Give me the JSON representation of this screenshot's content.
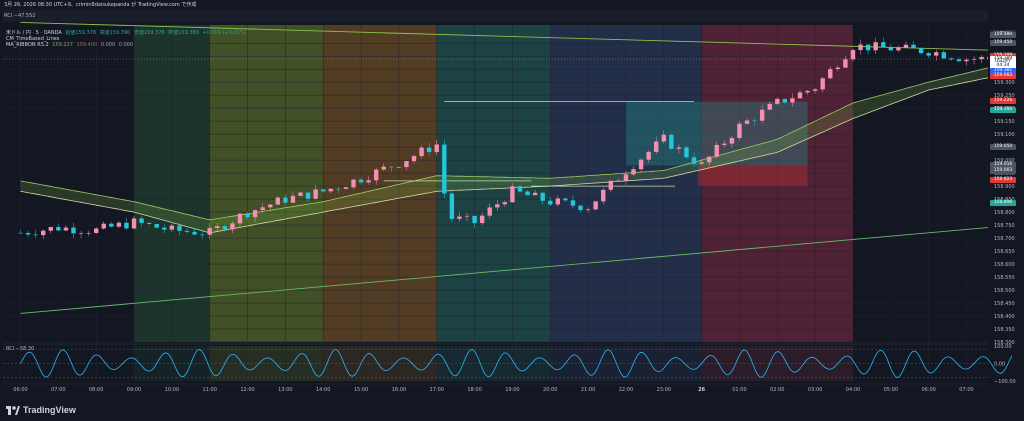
{
  "header": {
    "timestamp": "3月 26, 2026 08:30 UTC+9、crimin8daisukepanda が TradingView.com で作成",
    "rci_top": "RCI  −47.552"
  },
  "legend": {
    "symbol_line": "米ドル / 円 · 5 · OANDA",
    "ohlc": [
      "始値159.378",
      "高値159.390",
      "安値159.378",
      "終値159.389",
      "+0.009 (+0.01%)"
    ],
    "indicator1": "CM_TimeBased_Lines",
    "indicator2_name": "MA_RIBBON R5.2",
    "indicator2_values": [
      "159.227",
      "159.400",
      "0.000",
      "0.000"
    ]
  },
  "currency": "JPY",
  "colors": {
    "bg": "#131722",
    "up": "#f48fb1",
    "down": "#26c6da",
    "upper_line": "#8bc34a",
    "lower_line": "#66bb6a",
    "rci": "#29b6f6",
    "sessions": [
      "#1e3a2e",
      "#4a5a27",
      "#5e4425",
      "#1f4a4a",
      "#27334f",
      "#5a2438"
    ]
  },
  "price_tags": [
    {
      "label": "159.480",
      "price": 159.48,
      "color": "#4b5563"
    },
    {
      "label": "159.450",
      "price": 159.45,
      "color": "#4b5563"
    },
    {
      "label": "159.399",
      "price": 159.399,
      "color": "#e53935"
    },
    {
      "label": "159.389",
      "price": 159.389,
      "color": "#ffffff",
      "text": "#131722"
    },
    {
      "label": "USDJPY",
      "price": 159.376,
      "color": "#ffffff",
      "text": "#131722"
    },
    {
      "label": "04:34",
      "price": 159.362,
      "color": "#ffffff",
      "text": "#131722"
    },
    {
      "label": "159.381",
      "price": 159.345,
      "color": "#2962ff"
    },
    {
      "label": "159.083",
      "price": 159.322,
      "color": "#e53935"
    },
    {
      "label": "159.226",
      "price": 159.226,
      "color": "#e53935"
    },
    {
      "label": "159.194",
      "price": 159.194,
      "color": "#26a69a"
    },
    {
      "label": "159.050",
      "price": 159.05,
      "color": "#4b5563"
    },
    {
      "label": "159.016",
      "price": 158.98,
      "color": "#4b5563"
    },
    {
      "label": "159.003",
      "price": 158.96,
      "color": "#4b5563"
    },
    {
      "label": "158.923",
      "price": 158.923,
      "color": "#e53935"
    },
    {
      "label": "158.896",
      "price": 158.836,
      "color": "#26a69a"
    }
  ],
  "chart_data": [
    {
      "type": "candlestick",
      "title": "USDJPY 5m OANDA",
      "ylim": [
        158.3,
        159.52
      ],
      "y_ticks": [
        "159.450",
        "159.400",
        "159.350",
        "159.300",
        "159.250",
        "159.200",
        "159.150",
        "159.100",
        "159.050",
        "159.000",
        "158.950",
        "158.900",
        "158.850",
        "158.800",
        "158.750",
        "158.700",
        "158.650",
        "158.600",
        "158.550",
        "158.500",
        "158.450",
        "158.400",
        "158.350",
        "158.300"
      ],
      "x_ticks": [
        "06:00",
        "07:00",
        "08:00",
        "09:00",
        "10:00",
        "11:00",
        "12:00",
        "13:00",
        "14:00",
        "15:00",
        "16:00",
        "17:00",
        "18:00",
        "19:00",
        "20:00",
        "21:00",
        "22:00",
        "23:00",
        "26",
        "01:00",
        "02:00",
        "03:00",
        "04:00",
        "05:00",
        "06:00",
        "07:00"
      ],
      "session_bands": [
        {
          "from_tick": 3,
          "to_tick": 5,
          "color_index": 0
        },
        {
          "from_tick": 5,
          "to_tick": 8,
          "color_index": 1
        },
        {
          "from_tick": 8,
          "to_tick": 11,
          "color_index": 2
        },
        {
          "from_tick": 11,
          "to_tick": 14,
          "color_index": 3
        },
        {
          "from_tick": 14,
          "to_tick": 18,
          "color_index": 4
        },
        {
          "from_tick": 18,
          "to_tick": 22,
          "color_index": 5
        }
      ],
      "close_keypoints": [
        [
          0,
          158.72
        ],
        [
          1,
          158.74
        ],
        [
          2,
          158.73
        ],
        [
          3,
          158.76
        ],
        [
          4,
          158.73
        ],
        [
          5,
          158.72
        ],
        [
          6,
          158.8
        ],
        [
          7,
          158.85
        ],
        [
          8,
          158.88
        ],
        [
          9,
          158.93
        ],
        [
          10,
          158.99
        ],
        [
          11,
          159.06
        ],
        [
          11.3,
          158.78
        ],
        [
          12,
          158.76
        ],
        [
          13,
          158.88
        ],
        [
          14,
          158.84
        ],
        [
          15,
          158.82
        ],
        [
          16,
          158.96
        ],
        [
          17,
          159.08
        ],
        [
          18,
          158.98
        ],
        [
          19,
          159.13
        ],
        [
          20,
          159.22
        ],
        [
          21,
          159.28
        ],
        [
          22,
          159.44
        ],
        [
          23,
          159.43
        ],
        [
          24,
          159.42
        ],
        [
          25,
          159.39
        ],
        [
          26,
          159.39
        ]
      ],
      "ribbon_upper_keypoints": [
        [
          0,
          158.92
        ],
        [
          3,
          158.84
        ],
        [
          5,
          158.77
        ],
        [
          8,
          158.84
        ],
        [
          11,
          158.94
        ],
        [
          14,
          158.93
        ],
        [
          17,
          158.96
        ],
        [
          20,
          159.08
        ],
        [
          22,
          159.22
        ],
        [
          24,
          159.3
        ],
        [
          26,
          159.37
        ]
      ],
      "ribbon_lower_keypoints": [
        [
          0,
          158.88
        ],
        [
          3,
          158.8
        ],
        [
          5,
          158.72
        ],
        [
          8,
          158.8
        ],
        [
          11,
          158.88
        ],
        [
          14,
          158.9
        ],
        [
          17,
          158.93
        ],
        [
          20,
          159.03
        ],
        [
          22,
          159.16
        ],
        [
          24,
          159.27
        ],
        [
          26,
          159.33
        ]
      ],
      "trendlines": [
        {
          "from": [
            0,
            159.53
          ],
          "to": [
            26.3,
            159.42
          ],
          "color_key": "upper_line"
        },
        {
          "from": [
            0,
            158.41
          ],
          "to": [
            26.3,
            158.75
          ],
          "color_key": "lower_line"
        }
      ],
      "hlines": [
        {
          "from_tick": 11.2,
          "to_tick": 17.8,
          "price": 159.225
        },
        {
          "from_tick": 9.6,
          "to_tick": 13.5,
          "price": 158.92
        },
        {
          "from_tick": 13.5,
          "to_tick": 17.3,
          "price": 158.9
        }
      ],
      "boxes": [
        {
          "from_tick": 16.0,
          "to_tick": 20.8,
          "top": 159.225,
          "bottom": 158.98,
          "color": "#26a69a"
        },
        {
          "from_tick": 17.9,
          "to_tick": 20.8,
          "top": 158.98,
          "bottom": 158.9,
          "color": "#e53935"
        }
      ]
    },
    {
      "type": "line",
      "title": "RCI",
      "value_label": "−58.30",
      "ylim": [
        -100,
        100
      ],
      "y_ticks": [
        "100.00",
        "0.00",
        "−100.00"
      ],
      "oscillation_period_ticks": 0.9,
      "amplitude": 80
    }
  ]
}
